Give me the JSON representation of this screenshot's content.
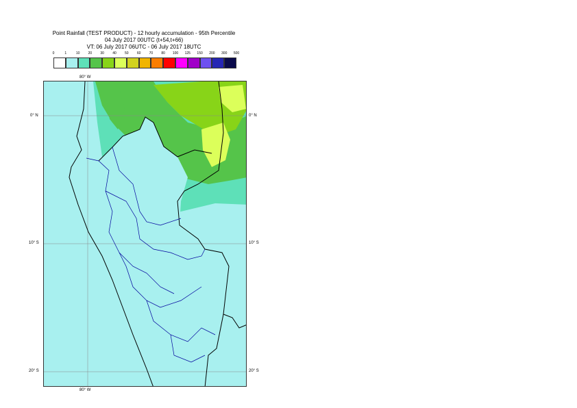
{
  "title": {
    "line1": "Point Rainfall (TEST PRODUCT) - 12 hourly accumulation - 95th Percentile",
    "line2": "04 July 2017 00UTC (t+54,t+66)",
    "line3": "VT: 06 July 2017 06UTC - 06 July 2017 18UTC"
  },
  "legend": {
    "ticks": [
      "0",
      "1",
      "10",
      "20",
      "30",
      "40",
      "50",
      "60",
      "70",
      "80",
      "100",
      "125",
      "150",
      "200",
      "300",
      "500"
    ],
    "colors": [
      "#ffffff",
      "#a8f0ef",
      "#5ee0b8",
      "#55c44a",
      "#88d418",
      "#dcff5a",
      "#d2d21e",
      "#f0b400",
      "#fa7d00",
      "#ff0000",
      "#ff00ff",
      "#a000c8",
      "#6e50f0",
      "#2626b4",
      "#0a0a4b"
    ]
  },
  "map": {
    "labels": {
      "lon_top": "80° W",
      "lon_bottom": "80° W",
      "lat_0_left": "0° N",
      "lat_0_right": "0° N",
      "lat_10_left": "10° S",
      "lat_10_right": "10° S",
      "lat_20_left": "20° S",
      "lat_20_right": "20° S"
    },
    "colors": {
      "ocean": "#a8f0ef",
      "land": "#ffffff",
      "coast": "#000000",
      "border": "#00009c",
      "grid": "#888888"
    }
  }
}
